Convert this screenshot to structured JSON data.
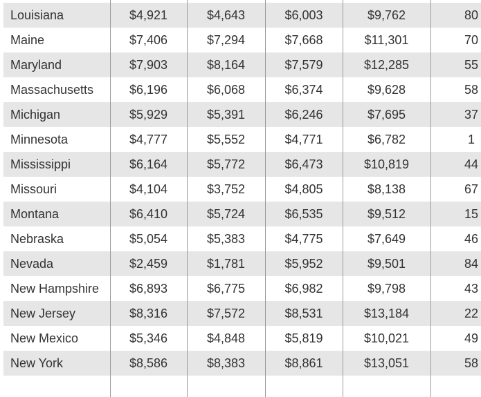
{
  "table": {
    "rows": [
      [
        "Louisiana",
        "$4,921",
        "$4,643",
        "$6,003",
        "$9,762",
        "80"
      ],
      [
        "Maine",
        "$7,406",
        "$7,294",
        "$7,668",
        "$11,301",
        "70"
      ],
      [
        "Maryland",
        "$7,903",
        "$8,164",
        "$7,579",
        "$12,285",
        "55"
      ],
      [
        "Massachusetts",
        "$6,196",
        "$6,068",
        "$6,374",
        "$9,628",
        "58"
      ],
      [
        "Michigan",
        "$5,929",
        "$5,391",
        "$6,246",
        "$7,695",
        "37"
      ],
      [
        "Minnesota",
        "$4,777",
        "$5,552",
        "$4,771",
        "$6,782",
        "1"
      ],
      [
        "Mississippi",
        "$6,164",
        "$5,772",
        "$6,473",
        "$10,819",
        "44"
      ],
      [
        "Missouri",
        "$4,104",
        "$3,752",
        "$4,805",
        "$8,138",
        "67"
      ],
      [
        "Montana",
        "$6,410",
        "$5,724",
        "$6,535",
        "$9,512",
        "15"
      ],
      [
        "Nebraska",
        "$5,054",
        "$5,383",
        "$4,775",
        "$7,649",
        "46"
      ],
      [
        "Nevada",
        "$2,459",
        "$1,781",
        "$5,952",
        "$9,501",
        "84"
      ],
      [
        "New Hampshire",
        "$6,893",
        "$6,775",
        "$6,982",
        "$9,798",
        "43"
      ],
      [
        "New Jersey",
        "$8,316",
        "$7,572",
        "$8,531",
        "$13,184",
        "22"
      ],
      [
        "New Mexico",
        "$5,346",
        "$4,848",
        "$5,819",
        "$10,021",
        "49"
      ],
      [
        "New York",
        "$8,586",
        "$8,383",
        "$8,861",
        "$13,051",
        "58"
      ]
    ]
  }
}
